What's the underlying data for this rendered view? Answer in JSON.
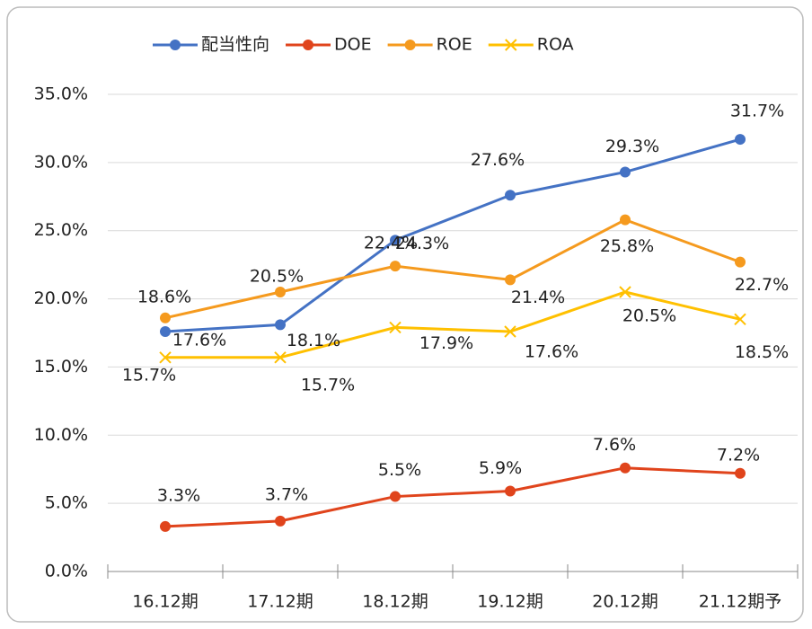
{
  "chart_data": {
    "type": "line",
    "categories": [
      "16.12期",
      "17.12期",
      "18.12期",
      "19.12期",
      "20.12期",
      "21.12期予"
    ],
    "series": [
      {
        "name": "配当性向",
        "color": "#4472c4",
        "marker": "circle",
        "values": [
          17.6,
          18.1,
          24.3,
          27.6,
          29.3,
          31.7
        ],
        "value_labels": [
          "17.6%",
          "18.1%",
          "24.3%",
          "27.6%",
          "29.3%",
          "31.7%"
        ]
      },
      {
        "name": "DOE",
        "color": "#e0441c",
        "marker": "circle",
        "values": [
          3.3,
          3.7,
          5.5,
          5.9,
          7.6,
          7.2
        ],
        "value_labels": [
          "3.3%",
          "3.7%",
          "5.5%",
          "5.9%",
          "7.6%",
          "7.2%"
        ]
      },
      {
        "name": "ROE",
        "color": "#f59a1e",
        "marker": "circle",
        "values": [
          18.6,
          20.5,
          22.4,
          21.4,
          25.8,
          22.7
        ],
        "value_labels": [
          "18.6%",
          "20.5%",
          "22.4%",
          "21.4%",
          "25.8%",
          "22.7%"
        ]
      },
      {
        "name": "ROA",
        "color": "#ffc000",
        "marker": "x",
        "values": [
          15.7,
          15.7,
          17.9,
          17.6,
          20.5,
          18.5
        ],
        "value_labels": [
          "15.7%",
          "15.7%",
          "17.9%",
          "17.6%",
          "20.5%",
          "18.5%"
        ]
      }
    ],
    "ylim": [
      0,
      35
    ],
    "yticks": [
      {
        "value": 0,
        "label": "0.0%"
      },
      {
        "value": 5,
        "label": "5.0%"
      },
      {
        "value": 10,
        "label": "10.0%"
      },
      {
        "value": 15,
        "label": "15.0%"
      },
      {
        "value": 20,
        "label": "20.0%"
      },
      {
        "value": 25,
        "label": "25.0%"
      },
      {
        "value": 30,
        "label": "30.0%"
      },
      {
        "value": 35,
        "label": "35.0%"
      }
    ],
    "grid": true,
    "legend": "top"
  }
}
